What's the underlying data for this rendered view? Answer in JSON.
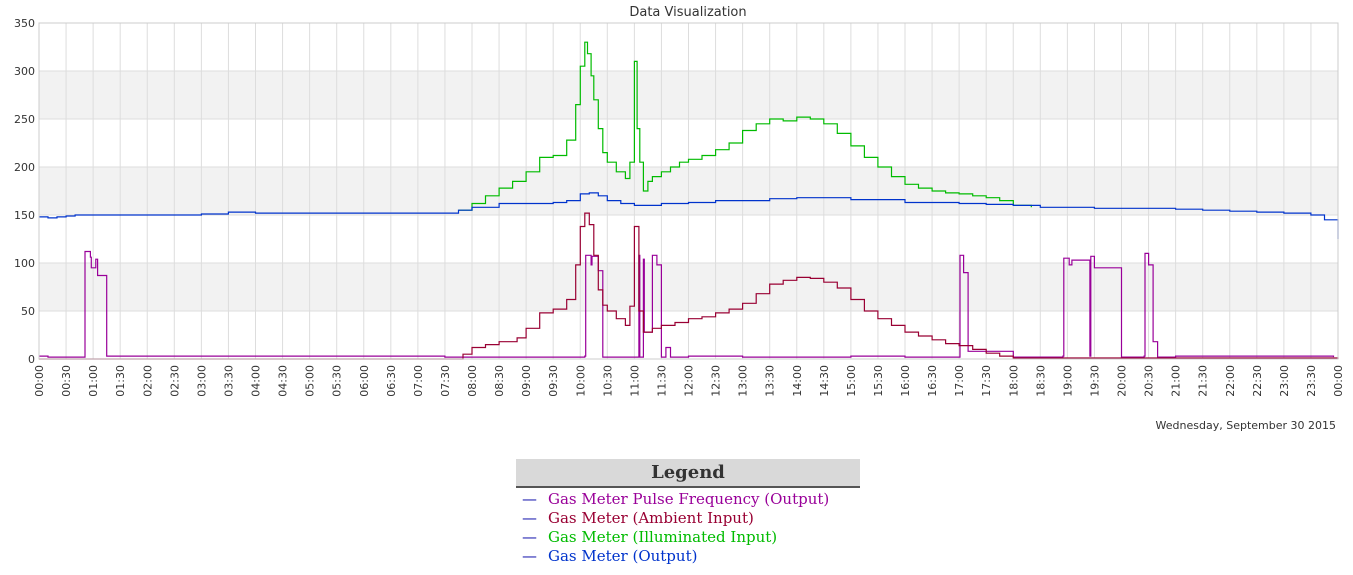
{
  "chart_data": {
    "type": "line",
    "title": "Data Visualization",
    "subtitle_date": "Wednesday, September 30 2015",
    "xlabel": "",
    "ylabel": "",
    "ylim": [
      0,
      350
    ],
    "yticks": [
      0,
      50,
      100,
      150,
      200,
      250,
      300,
      350
    ],
    "xlim": [
      "00:00",
      "24:00"
    ],
    "xtick_labels": [
      "00:00",
      "00:30",
      "01:00",
      "01:30",
      "02:00",
      "02:30",
      "03:00",
      "03:30",
      "04:00",
      "04:30",
      "05:00",
      "05:30",
      "06:00",
      "06:30",
      "07:00",
      "07:30",
      "08:00",
      "08:30",
      "09:00",
      "09:30",
      "10:00",
      "10:30",
      "11:00",
      "11:30",
      "12:00",
      "12:30",
      "13:00",
      "13:30",
      "14:00",
      "14:30",
      "15:00",
      "15:30",
      "16:00",
      "16:30",
      "17:00",
      "17:30",
      "18:00",
      "18:30",
      "19:00",
      "19:30",
      "20:00",
      "20:30",
      "21:00",
      "21:30",
      "22:00",
      "22:30",
      "23:00",
      "23:30",
      "00:00"
    ],
    "grid": true,
    "legend_title": "Legend",
    "legend_position": "bottom",
    "series": [
      {
        "name": "Gas Meter Pulse Frequency (Output)",
        "color": "#990099",
        "x": [
          "00:00",
          "00:10",
          "00:50",
          "00:51",
          "00:57",
          "00:58",
          "01:03",
          "01:05",
          "01:15",
          "01:16",
          "02:00",
          "03:00",
          "04:00",
          "05:00",
          "06:00",
          "07:00",
          "07:30",
          "08:00",
          "09:00",
          "09:50",
          "10:05",
          "10:06",
          "10:12",
          "10:13",
          "10:20",
          "10:25",
          "11:00",
          "11:05",
          "11:06",
          "11:10",
          "11:11",
          "11:20",
          "11:25",
          "11:30",
          "11:35",
          "11:40",
          "12:00",
          "13:00",
          "14:00",
          "15:00",
          "16:00",
          "16:50",
          "17:00",
          "17:01",
          "17:05",
          "17:10",
          "18:00",
          "18:45",
          "18:55",
          "18:56",
          "19:02",
          "19:05",
          "19:25",
          "19:26",
          "19:30",
          "20:00",
          "20:25",
          "20:26",
          "20:30",
          "20:35",
          "20:40",
          "21:00",
          "22:00",
          "23:00",
          "23:55"
        ],
        "values": [
          3,
          2,
          2,
          112,
          106,
          95,
          104,
          87,
          3,
          3,
          3,
          3,
          3,
          3,
          3,
          3,
          2,
          2,
          2,
          2,
          3,
          108,
          98,
          107,
          92,
          2,
          2,
          108,
          2,
          104,
          28,
          108,
          98,
          2,
          12,
          2,
          3,
          2,
          2,
          3,
          2,
          2,
          2,
          108,
          90,
          8,
          2,
          2,
          3,
          105,
          98,
          103,
          3,
          107,
          95,
          2,
          3,
          110,
          98,
          18,
          2,
          3,
          3,
          3,
          2
        ]
      },
      {
        "name": "Gas Meter (Ambient Input)",
        "color": "#990033",
        "x": [
          "00:00",
          "07:40",
          "07:50",
          "08:00",
          "08:15",
          "08:30",
          "08:50",
          "09:00",
          "09:15",
          "09:30",
          "09:45",
          "09:55",
          "10:00",
          "10:05",
          "10:10",
          "10:15",
          "10:20",
          "10:25",
          "10:30",
          "10:40",
          "10:50",
          "10:55",
          "11:00",
          "11:05",
          "11:10",
          "11:20",
          "11:30",
          "11:45",
          "12:00",
          "12:15",
          "12:30",
          "12:45",
          "13:00",
          "13:15",
          "13:30",
          "13:45",
          "14:00",
          "14:15",
          "14:30",
          "14:45",
          "15:00",
          "15:15",
          "15:30",
          "15:45",
          "16:00",
          "16:15",
          "16:30",
          "16:45",
          "17:00",
          "17:15",
          "17:30",
          "17:45",
          "18:00",
          "24:00"
        ],
        "values": [
          0,
          0,
          5,
          12,
          15,
          18,
          22,
          32,
          48,
          52,
          62,
          98,
          138,
          152,
          140,
          108,
          72,
          56,
          50,
          42,
          35,
          55,
          138,
          50,
          28,
          32,
          35,
          38,
          42,
          44,
          48,
          52,
          58,
          68,
          78,
          82,
          85,
          84,
          80,
          74,
          62,
          50,
          42,
          35,
          28,
          24,
          20,
          16,
          14,
          10,
          6,
          3,
          1,
          0
        ]
      },
      {
        "name": "Gas Meter (Illuminated Input)",
        "color": "#00bb00",
        "x": [
          "07:45",
          "08:00",
          "08:15",
          "08:30",
          "08:45",
          "09:00",
          "09:15",
          "09:30",
          "09:45",
          "09:55",
          "10:00",
          "10:05",
          "10:08",
          "10:12",
          "10:15",
          "10:20",
          "10:25",
          "10:30",
          "10:40",
          "10:50",
          "10:55",
          "11:00",
          "11:03",
          "11:06",
          "11:10",
          "11:15",
          "11:20",
          "11:30",
          "11:40",
          "11:50",
          "12:00",
          "12:15",
          "12:30",
          "12:45",
          "13:00",
          "13:15",
          "13:30",
          "13:45",
          "14:00",
          "14:15",
          "14:30",
          "14:45",
          "15:00",
          "15:15",
          "15:30",
          "15:45",
          "16:00",
          "16:15",
          "16:30",
          "16:45",
          "17:00",
          "17:15",
          "17:30",
          "17:45",
          "18:00",
          "18:20"
        ],
        "values": [
          155,
          162,
          170,
          178,
          185,
          195,
          210,
          212,
          228,
          265,
          305,
          330,
          318,
          295,
          270,
          240,
          215,
          205,
          195,
          188,
          205,
          310,
          240,
          205,
          175,
          185,
          190,
          195,
          200,
          205,
          208,
          212,
          218,
          225,
          238,
          245,
          250,
          248,
          252,
          250,
          245,
          235,
          222,
          210,
          200,
          190,
          182,
          178,
          175,
          173,
          172,
          170,
          168,
          165,
          160,
          158
        ]
      },
      {
        "name": "Gas Meter (Output)",
        "color": "#0033cc",
        "x": [
          "00:00",
          "00:10",
          "00:20",
          "00:30",
          "00:40",
          "00:50",
          "01:00",
          "01:10",
          "01:20",
          "01:30",
          "02:00",
          "02:30",
          "03:00",
          "03:30",
          "04:00",
          "04:30",
          "05:00",
          "05:30",
          "06:00",
          "06:30",
          "07:00",
          "07:30",
          "07:45",
          "08:00",
          "08:30",
          "09:00",
          "09:30",
          "09:45",
          "10:00",
          "10:10",
          "10:20",
          "10:30",
          "10:45",
          "11:00",
          "11:15",
          "11:30",
          "12:00",
          "12:30",
          "13:00",
          "13:30",
          "14:00",
          "14:30",
          "15:00",
          "15:30",
          "16:00",
          "16:30",
          "17:00",
          "17:30",
          "18:00",
          "18:30",
          "19:00",
          "19:30",
          "20:00",
          "20:30",
          "21:00",
          "21:30",
          "22:00",
          "22:30",
          "23:00",
          "23:30",
          "23:45",
          "24:00"
        ],
        "values": [
          148,
          147,
          148,
          149,
          150,
          150,
          150,
          150,
          150,
          150,
          150,
          150,
          151,
          153,
          152,
          152,
          152,
          152,
          152,
          152,
          152,
          152,
          155,
          158,
          162,
          162,
          163,
          165,
          172,
          173,
          170,
          165,
          162,
          160,
          160,
          162,
          163,
          165,
          165,
          167,
          168,
          168,
          166,
          166,
          163,
          163,
          162,
          161,
          160,
          158,
          158,
          157,
          157,
          157,
          156,
          155,
          154,
          153,
          152,
          150,
          145,
          125
        ]
      }
    ]
  },
  "legend": {
    "title": "Legend",
    "swatch": "—",
    "items": [
      {
        "label": "Gas Meter Pulse Frequency (Output)",
        "color": "#990099"
      },
      {
        "label": "Gas Meter (Ambient Input)",
        "color": "#990033"
      },
      {
        "label": "Gas Meter (Illuminated Input)",
        "color": "#00bb00"
      },
      {
        "label": "Gas Meter (Output)",
        "color": "#0033cc"
      }
    ]
  }
}
